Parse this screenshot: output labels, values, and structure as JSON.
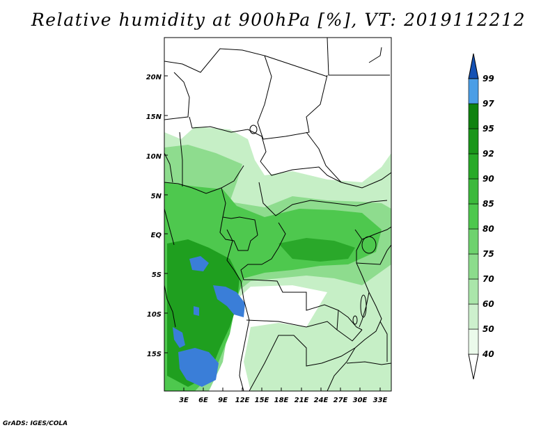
{
  "title": "Relative humidity at 900hPa [%], VT: 2019112212",
  "credit": "GrADS: IGES/COLA",
  "map": {
    "lat_labels": [
      "20N",
      "15N",
      "10N",
      "5N",
      "EQ",
      "5S",
      "10S",
      "15S"
    ],
    "lon_labels": [
      "3E",
      "6E",
      "9E",
      "12E",
      "15E",
      "18E",
      "21E",
      "24E",
      "27E",
      "30E",
      "33E"
    ]
  },
  "colorbar": {
    "levels": [
      "40",
      "50",
      "60",
      "70",
      "75",
      "80",
      "85",
      "90",
      "92",
      "95",
      "97",
      "99"
    ],
    "colors": [
      "#ebfaeb",
      "#cdf0cd",
      "#aae6aa",
      "#8cdc8c",
      "#6ed26e",
      "#4ec84e",
      "#3cb93c",
      "#28aa28",
      "#1a961a",
      "#0f820f",
      "#4b9ee6",
      "#2a78d6",
      "#1451b4"
    ]
  }
}
